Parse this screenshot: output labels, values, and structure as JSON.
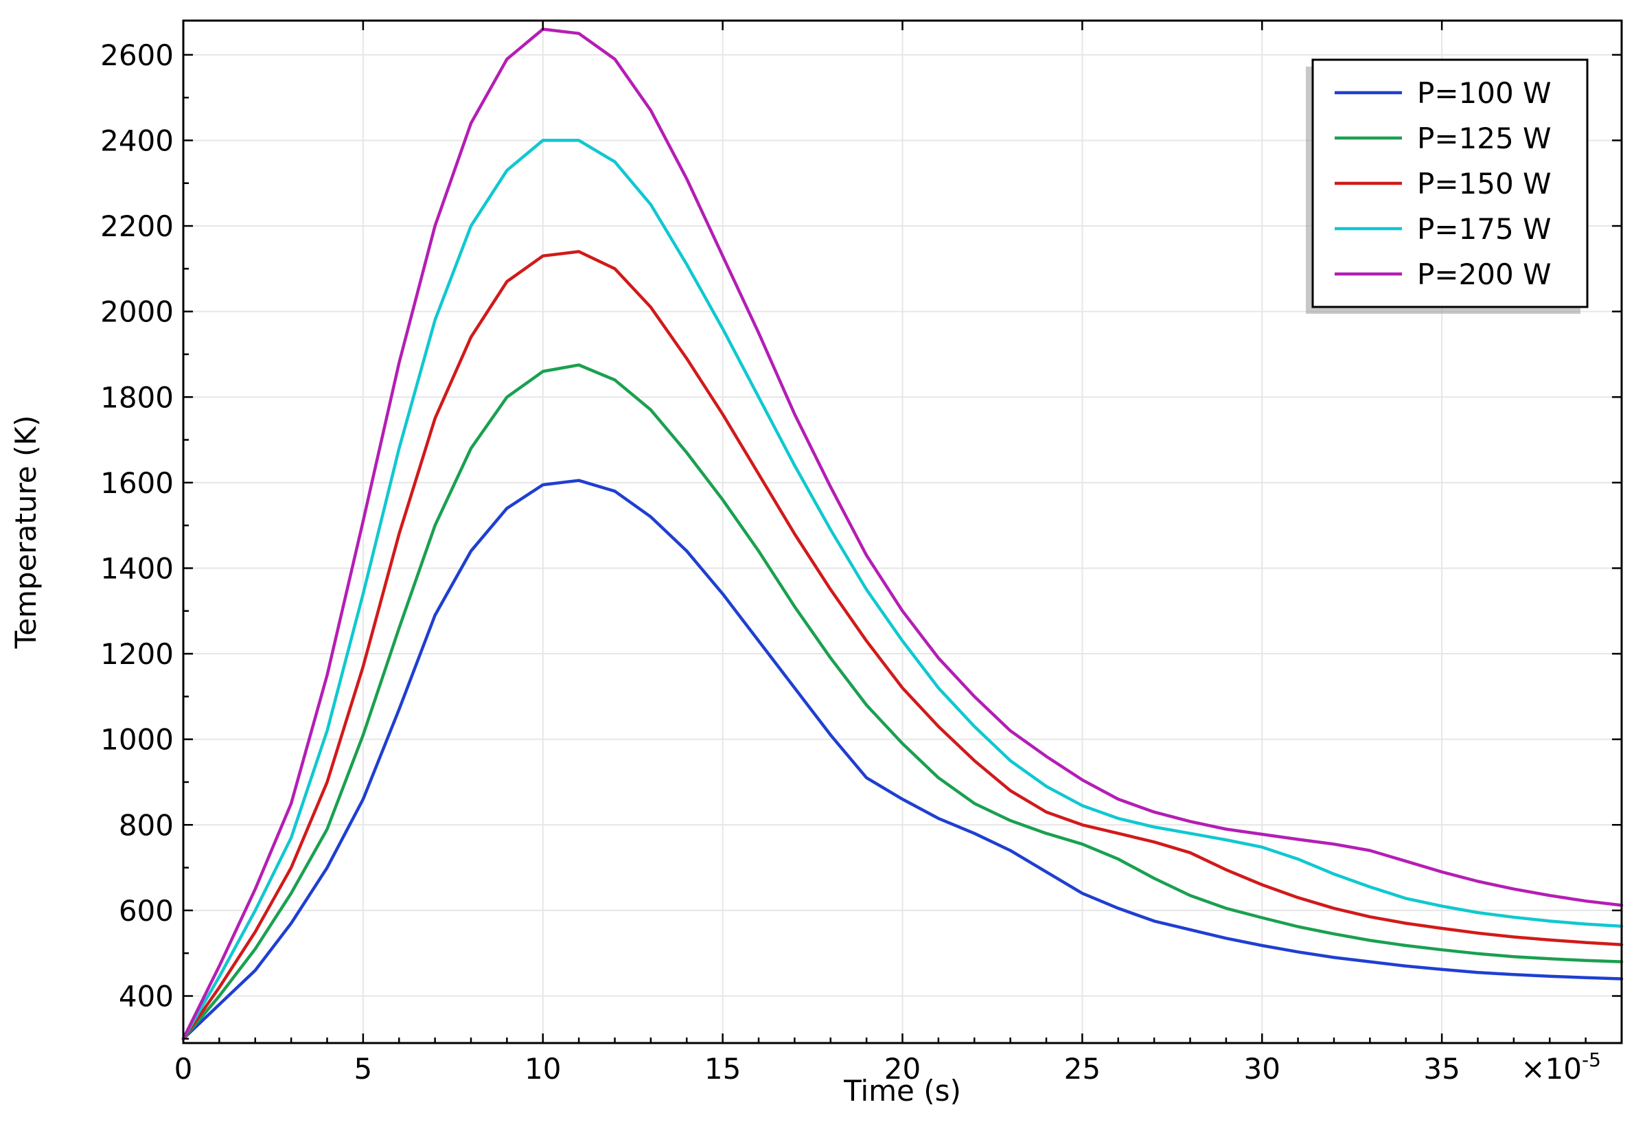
{
  "chart_data": {
    "type": "line",
    "xlabel": "Time (s)",
    "ylabel": "Temperature (K)",
    "x_multiplier_label": "×10",
    "x_multiplier_exponent": "-5",
    "xlim": [
      0,
      40
    ],
    "ylim": [
      290,
      2680
    ],
    "xticks": [
      0,
      5,
      10,
      15,
      20,
      25,
      30,
      35
    ],
    "yticks": [
      400,
      600,
      800,
      1000,
      1200,
      1400,
      1600,
      1800,
      2000,
      2200,
      2400,
      2600
    ],
    "grid": true,
    "legend_position": "top-right",
    "series": [
      {
        "name": "P=100 W",
        "color": "#1f3fd1",
        "points": [
          [
            0,
            300
          ],
          [
            1,
            380
          ],
          [
            2,
            460
          ],
          [
            3,
            570
          ],
          [
            4,
            700
          ],
          [
            5,
            860
          ],
          [
            6,
            1070
          ],
          [
            7,
            1290
          ],
          [
            8,
            1440
          ],
          [
            9,
            1540
          ],
          [
            10,
            1595
          ],
          [
            11,
            1605
          ],
          [
            12,
            1580
          ],
          [
            13,
            1520
          ],
          [
            14,
            1440
          ],
          [
            15,
            1340
          ],
          [
            16,
            1230
          ],
          [
            17,
            1120
          ],
          [
            18,
            1010
          ],
          [
            19,
            910
          ],
          [
            20,
            860
          ],
          [
            21,
            815
          ],
          [
            22,
            780
          ],
          [
            23,
            740
          ],
          [
            24,
            690
          ],
          [
            25,
            640
          ],
          [
            26,
            605
          ],
          [
            27,
            575
          ],
          [
            28,
            555
          ],
          [
            29,
            535
          ],
          [
            30,
            518
          ],
          [
            31,
            503
          ],
          [
            32,
            490
          ],
          [
            33,
            480
          ],
          [
            34,
            470
          ],
          [
            35,
            462
          ],
          [
            36,
            455
          ],
          [
            37,
            450
          ],
          [
            38,
            446
          ],
          [
            39,
            443
          ],
          [
            40,
            440
          ]
        ]
      },
      {
        "name": "P=125 W",
        "color": "#1aa050",
        "points": [
          [
            0,
            300
          ],
          [
            1,
            400
          ],
          [
            2,
            510
          ],
          [
            3,
            640
          ],
          [
            4,
            790
          ],
          [
            5,
            1010
          ],
          [
            6,
            1260
          ],
          [
            7,
            1500
          ],
          [
            8,
            1680
          ],
          [
            9,
            1800
          ],
          [
            10,
            1860
          ],
          [
            11,
            1875
          ],
          [
            12,
            1840
          ],
          [
            13,
            1770
          ],
          [
            14,
            1670
          ],
          [
            15,
            1560
          ],
          [
            16,
            1440
          ],
          [
            17,
            1310
          ],
          [
            18,
            1190
          ],
          [
            19,
            1080
          ],
          [
            20,
            990
          ],
          [
            21,
            910
          ],
          [
            22,
            850
          ],
          [
            23,
            810
          ],
          [
            24,
            780
          ],
          [
            25,
            755
          ],
          [
            26,
            720
          ],
          [
            27,
            675
          ],
          [
            28,
            635
          ],
          [
            29,
            605
          ],
          [
            30,
            583
          ],
          [
            31,
            562
          ],
          [
            32,
            545
          ],
          [
            33,
            530
          ],
          [
            34,
            518
          ],
          [
            35,
            508
          ],
          [
            36,
            499
          ],
          [
            37,
            492
          ],
          [
            38,
            487
          ],
          [
            39,
            483
          ],
          [
            40,
            480
          ]
        ]
      },
      {
        "name": "P=150 W",
        "color": "#d11a1a",
        "points": [
          [
            0,
            300
          ],
          [
            1,
            420
          ],
          [
            2,
            550
          ],
          [
            3,
            700
          ],
          [
            4,
            900
          ],
          [
            5,
            1170
          ],
          [
            6,
            1480
          ],
          [
            7,
            1750
          ],
          [
            8,
            1940
          ],
          [
            9,
            2070
          ],
          [
            10,
            2130
          ],
          [
            11,
            2140
          ],
          [
            12,
            2100
          ],
          [
            13,
            2010
          ],
          [
            14,
            1890
          ],
          [
            15,
            1760
          ],
          [
            16,
            1620
          ],
          [
            17,
            1480
          ],
          [
            18,
            1350
          ],
          [
            19,
            1230
          ],
          [
            20,
            1120
          ],
          [
            21,
            1030
          ],
          [
            22,
            950
          ],
          [
            23,
            880
          ],
          [
            24,
            830
          ],
          [
            25,
            800
          ],
          [
            26,
            780
          ],
          [
            27,
            760
          ],
          [
            28,
            735
          ],
          [
            29,
            695
          ],
          [
            30,
            660
          ],
          [
            31,
            630
          ],
          [
            32,
            605
          ],
          [
            33,
            585
          ],
          [
            34,
            570
          ],
          [
            35,
            558
          ],
          [
            36,
            547
          ],
          [
            37,
            538
          ],
          [
            38,
            531
          ],
          [
            39,
            525
          ],
          [
            40,
            520
          ]
        ]
      },
      {
        "name": "P=175 W",
        "color": "#10c8d0",
        "points": [
          [
            0,
            300
          ],
          [
            1,
            445
          ],
          [
            2,
            600
          ],
          [
            3,
            770
          ],
          [
            4,
            1020
          ],
          [
            5,
            1340
          ],
          [
            6,
            1680
          ],
          [
            7,
            1980
          ],
          [
            8,
            2200
          ],
          [
            9,
            2330
          ],
          [
            10,
            2400
          ],
          [
            11,
            2400
          ],
          [
            12,
            2350
          ],
          [
            13,
            2250
          ],
          [
            14,
            2110
          ],
          [
            15,
            1960
          ],
          [
            16,
            1800
          ],
          [
            17,
            1640
          ],
          [
            18,
            1490
          ],
          [
            19,
            1350
          ],
          [
            20,
            1230
          ],
          [
            21,
            1120
          ],
          [
            22,
            1030
          ],
          [
            23,
            950
          ],
          [
            24,
            890
          ],
          [
            25,
            845
          ],
          [
            26,
            815
          ],
          [
            27,
            795
          ],
          [
            28,
            780
          ],
          [
            29,
            765
          ],
          [
            30,
            748
          ],
          [
            31,
            720
          ],
          [
            32,
            685
          ],
          [
            33,
            655
          ],
          [
            34,
            628
          ],
          [
            35,
            610
          ],
          [
            36,
            595
          ],
          [
            37,
            584
          ],
          [
            38,
            575
          ],
          [
            39,
            568
          ],
          [
            40,
            563
          ]
        ]
      },
      {
        "name": "P=200 W",
        "color": "#b41eb4",
        "points": [
          [
            0,
            300
          ],
          [
            1,
            470
          ],
          [
            2,
            650
          ],
          [
            3,
            850
          ],
          [
            4,
            1150
          ],
          [
            5,
            1510
          ],
          [
            6,
            1880
          ],
          [
            7,
            2200
          ],
          [
            8,
            2440
          ],
          [
            9,
            2590
          ],
          [
            10,
            2660
          ],
          [
            11,
            2650
          ],
          [
            12,
            2590
          ],
          [
            13,
            2470
          ],
          [
            14,
            2310
          ],
          [
            15,
            2130
          ],
          [
            16,
            1950
          ],
          [
            17,
            1760
          ],
          [
            18,
            1590
          ],
          [
            19,
            1430
          ],
          [
            20,
            1300
          ],
          [
            21,
            1190
          ],
          [
            22,
            1100
          ],
          [
            23,
            1020
          ],
          [
            24,
            960
          ],
          [
            25,
            905
          ],
          [
            26,
            860
          ],
          [
            27,
            830
          ],
          [
            28,
            808
          ],
          [
            29,
            790
          ],
          [
            30,
            778
          ],
          [
            31,
            766
          ],
          [
            32,
            755
          ],
          [
            33,
            740
          ],
          [
            34,
            715
          ],
          [
            35,
            690
          ],
          [
            36,
            668
          ],
          [
            37,
            650
          ],
          [
            38,
            635
          ],
          [
            39,
            622
          ],
          [
            40,
            612
          ]
        ]
      }
    ]
  }
}
